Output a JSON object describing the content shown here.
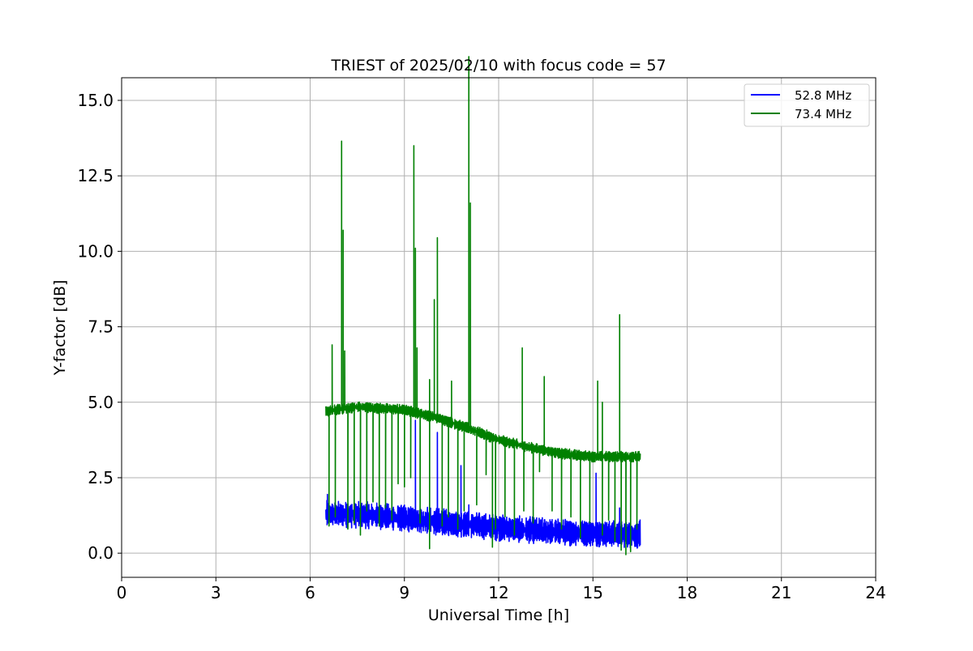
{
  "chart_data": {
    "type": "line",
    "title": "TRIEST of 2025/02/10 with focus code = 57",
    "xlabel": "Universal Time [h]",
    "ylabel": "Y-factor [dB]",
    "xlim": [
      0,
      24
    ],
    "ylim": [
      -0.8,
      15.75
    ],
    "xticks": [
      0,
      3,
      6,
      9,
      12,
      15,
      18,
      21,
      24
    ],
    "yticks": [
      0.0,
      2.5,
      5.0,
      7.5,
      10.0,
      12.5,
      15.0
    ],
    "xtick_labels": [
      "0",
      "3",
      "6",
      "9",
      "12",
      "15",
      "18",
      "21",
      "24"
    ],
    "ytick_labels": [
      "0.0",
      "2.5",
      "5.0",
      "7.5",
      "10.0",
      "12.5",
      "15.0"
    ],
    "grid": true,
    "legend_position": "top-right",
    "series": [
      {
        "name": "52.8 MHz",
        "color": "#0000ff",
        "baseline": [
          [
            6.5,
            1.3
          ],
          [
            8.0,
            1.25
          ],
          [
            9.5,
            1.1
          ],
          [
            11.0,
            0.95
          ],
          [
            12.5,
            0.8
          ],
          [
            14.0,
            0.7
          ],
          [
            15.5,
            0.65
          ],
          [
            16.5,
            0.6
          ]
        ],
        "noise_amplitude": 0.45,
        "spikes": [
          [
            6.55,
            1.95
          ],
          [
            9.35,
            4.4
          ],
          [
            10.05,
            4.0
          ],
          [
            10.8,
            2.9
          ],
          [
            11.05,
            1.6
          ],
          [
            15.1,
            2.65
          ],
          [
            15.85,
            1.5
          ],
          [
            16.5,
            1.1
          ]
        ]
      },
      {
        "name": "73.4 MHz",
        "color": "#008000",
        "baseline": [
          [
            6.5,
            4.7
          ],
          [
            7.5,
            4.85
          ],
          [
            9.0,
            4.75
          ],
          [
            10.0,
            4.5
          ],
          [
            11.0,
            4.15
          ],
          [
            12.0,
            3.75
          ],
          [
            13.0,
            3.5
          ],
          [
            14.0,
            3.3
          ],
          [
            15.0,
            3.2
          ],
          [
            16.5,
            3.2
          ]
        ],
        "noise_amplitude": 0.18,
        "spikes": [
          [
            6.7,
            6.9
          ],
          [
            7.0,
            13.65
          ],
          [
            7.05,
            10.7
          ],
          [
            7.1,
            6.7
          ],
          [
            9.3,
            13.5
          ],
          [
            9.35,
            10.1
          ],
          [
            9.4,
            6.8
          ],
          [
            9.8,
            5.75
          ],
          [
            9.95,
            8.4
          ],
          [
            10.05,
            10.45
          ],
          [
            10.5,
            5.7
          ],
          [
            11.05,
            16.45
          ],
          [
            11.1,
            11.6
          ],
          [
            12.75,
            6.8
          ],
          [
            13.45,
            5.85
          ],
          [
            15.15,
            5.7
          ],
          [
            15.3,
            5.0
          ],
          [
            15.85,
            7.9
          ]
        ],
        "dips": [
          [
            6.6,
            0.9
          ],
          [
            6.8,
            1.2
          ],
          [
            7.2,
            0.8
          ],
          [
            7.4,
            1.0
          ],
          [
            7.6,
            0.6
          ],
          [
            7.8,
            1.4
          ],
          [
            8.0,
            1.7
          ],
          [
            8.2,
            0.9
          ],
          [
            8.4,
            1.5
          ],
          [
            8.6,
            1.1
          ],
          [
            8.8,
            2.3
          ],
          [
            9.0,
            2.2
          ],
          [
            9.2,
            2.5
          ],
          [
            9.5,
            1.0
          ],
          [
            9.8,
            0.15
          ],
          [
            10.2,
            0.9
          ],
          [
            10.4,
            1.2
          ],
          [
            10.7,
            0.8
          ],
          [
            10.9,
            1.4
          ],
          [
            11.3,
            1.6
          ],
          [
            11.6,
            2.6
          ],
          [
            11.8,
            0.2
          ],
          [
            11.9,
            0.8
          ],
          [
            12.2,
            1.2
          ],
          [
            12.5,
            0.6
          ],
          [
            12.8,
            1.4
          ],
          [
            13.1,
            1.0
          ],
          [
            13.3,
            2.7
          ],
          [
            13.7,
            1.4
          ],
          [
            14.0,
            0.8
          ],
          [
            14.3,
            1.2
          ],
          [
            14.6,
            0.5
          ],
          [
            14.9,
            1.0
          ],
          [
            15.3,
            0.6
          ],
          [
            15.5,
            1.1
          ],
          [
            15.7,
            0.4
          ],
          [
            15.9,
            0.1
          ],
          [
            16.05,
            -0.05
          ],
          [
            16.2,
            0.05
          ],
          [
            16.4,
            0.8
          ]
        ],
        "end": [
          16.5,
          3.3
        ]
      }
    ]
  }
}
